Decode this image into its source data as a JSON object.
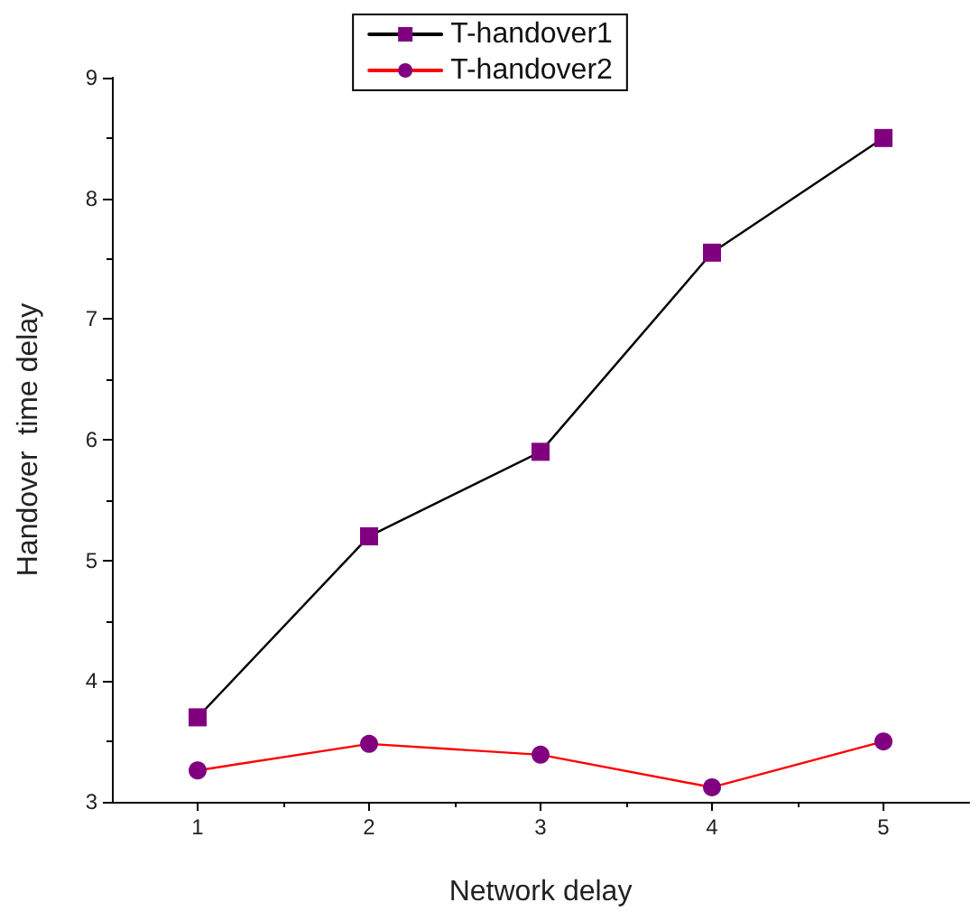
{
  "chart_data": {
    "type": "line",
    "xlabel": "Network delay",
    "ylabel": "Handover  time delay",
    "x": [
      1,
      2,
      3,
      4,
      5
    ],
    "series": [
      {
        "name": "T-handover1",
        "color": "#000000",
        "marker": "square",
        "values": [
          3.7,
          5.2,
          5.9,
          7.55,
          8.5
        ]
      },
      {
        "name": "T-handover2",
        "color": "#ff0000",
        "marker": "circle",
        "values": [
          3.26,
          3.48,
          3.39,
          3.12,
          3.5
        ]
      }
    ],
    "xlim": [
      0.5,
      5.5
    ],
    "xticks": [
      1,
      2,
      3,
      4,
      5
    ],
    "ylim": [
      3,
      9
    ],
    "yticks": [
      3,
      4,
      5,
      6,
      7,
      8,
      9
    ],
    "grid": false,
    "legend": "top",
    "line_style": "solid"
  }
}
